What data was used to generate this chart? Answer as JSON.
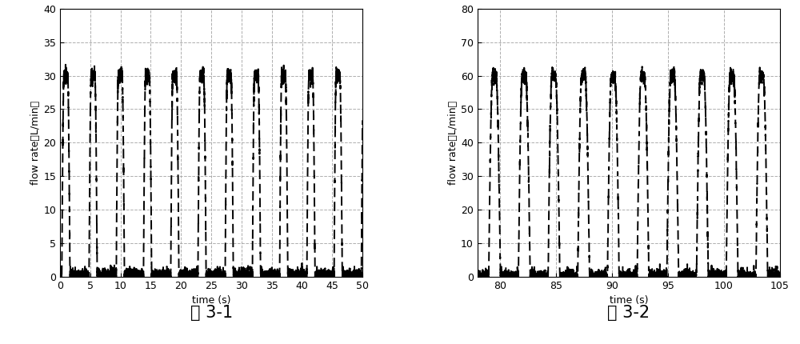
{
  "fig1": {
    "xlabel": "time (s)",
    "ylabel": "flow rate（L/min）",
    "xlim": [
      0,
      50
    ],
    "ylim": [
      0,
      40
    ],
    "xticks": [
      0,
      5,
      10,
      15,
      20,
      25,
      30,
      35,
      40,
      45,
      50
    ],
    "yticks": [
      0,
      5,
      10,
      15,
      20,
      25,
      30,
      35,
      40
    ],
    "caption": "图 3-1",
    "period": 4.5,
    "inhale_dur": 1.8,
    "plateau_dur": 0.6,
    "peak": 30,
    "start": 0.3,
    "noise_scale": 0.5
  },
  "fig2": {
    "xlabel": "time (s)",
    "ylabel": "flow rate（L/min）",
    "xlim": [
      78,
      105
    ],
    "ylim": [
      0,
      80
    ],
    "xticks": [
      80,
      85,
      90,
      95,
      100,
      105
    ],
    "yticks": [
      0,
      10,
      20,
      30,
      40,
      50,
      60,
      70,
      80
    ],
    "caption": "图 3-2",
    "period": 2.65,
    "inhale_dur": 1.0,
    "plateau_dur": 0.3,
    "peak": 60,
    "start": 79.0,
    "noise_scale": 1.0
  },
  "line_color": "#000000",
  "grid_color": "#999999",
  "grid_style": "--",
  "bg_color": "#ffffff",
  "caption_fontsize": 15,
  "axis_fontsize": 9,
  "tick_fontsize": 9,
  "linewidth": 1.4,
  "dash_seq": [
    6,
    3
  ]
}
